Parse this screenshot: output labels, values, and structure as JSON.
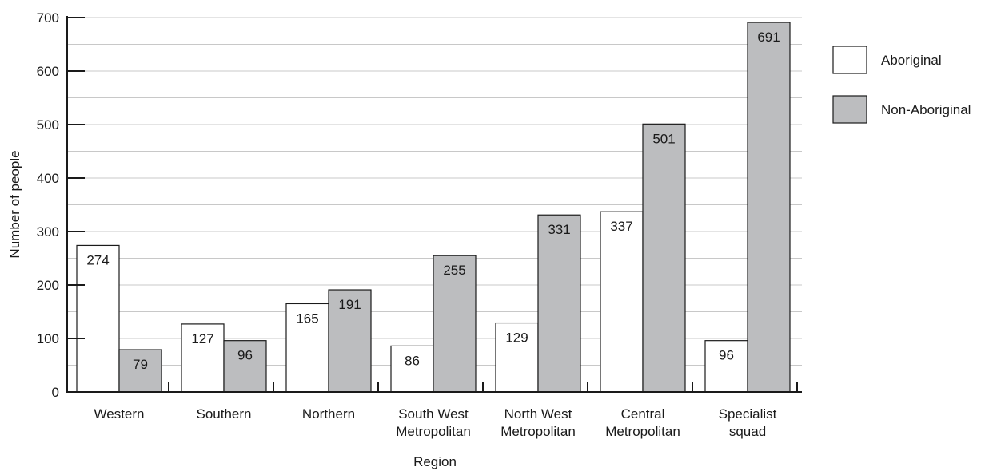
{
  "chart_data": {
    "type": "bar",
    "title": "",
    "xlabel": "Region",
    "ylabel": "Number of people",
    "ylim": [
      0,
      700
    ],
    "yticks": [
      0,
      100,
      200,
      300,
      400,
      500,
      600,
      700
    ],
    "minor_gridline_step": 50,
    "grid": true,
    "legend_position": "right",
    "categories": [
      [
        "Western"
      ],
      [
        "Southern"
      ],
      [
        "Northern"
      ],
      [
        "South West",
        "Metropolitan"
      ],
      [
        "North West",
        "Metropolitan"
      ],
      [
        "Central",
        "Metropolitan"
      ],
      [
        "Specialist",
        "squad"
      ]
    ],
    "series": [
      {
        "name": "Aboriginal",
        "color": "#ffffff",
        "values": [
          274,
          127,
          165,
          86,
          129,
          337,
          96
        ]
      },
      {
        "name": "Non-Aboriginal",
        "color": "#bcbdbf",
        "values": [
          79,
          96,
          191,
          255,
          331,
          501,
          691
        ]
      }
    ]
  }
}
